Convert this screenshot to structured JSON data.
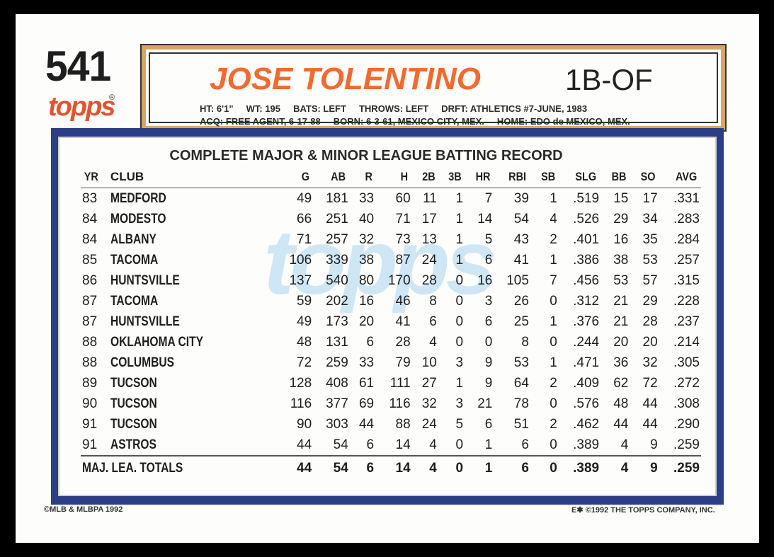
{
  "card_number": "541",
  "brand": "topps",
  "player": {
    "name": "JOSE TOLENTINO",
    "position": "1B-OF",
    "bio_line1": "HT: 6'1\"     WT: 195     BATS: LEFT     THROWS: LEFT     DRFT: ATHLETICS #7-JUNE, 1983",
    "bio_line2": "ACQ: FREE AGENT, 6-17-88     BORN: 6-3-61, MEXICO CITY, MEX.     HOME: EDO de MEXICO, MEX."
  },
  "stats": {
    "title": "COMPLETE MAJOR & MINOR LEAGUE BATTING RECORD",
    "columns": [
      "YR",
      "CLUB",
      "G",
      "AB",
      "R",
      "H",
      "2B",
      "3B",
      "HR",
      "RBI",
      "SB",
      "SLG",
      "BB",
      "SO",
      "AVG"
    ],
    "rows": [
      [
        "83",
        "MEDFORD",
        "49",
        "181",
        "33",
        "60",
        "11",
        "1",
        "7",
        "39",
        "1",
        ".519",
        "15",
        "17",
        ".331"
      ],
      [
        "84",
        "MODESTO",
        "66",
        "251",
        "40",
        "71",
        "17",
        "1",
        "14",
        "54",
        "4",
        ".526",
        "29",
        "34",
        ".283"
      ],
      [
        "84",
        "ALBANY",
        "71",
        "257",
        "32",
        "73",
        "13",
        "1",
        "5",
        "43",
        "2",
        ".401",
        "16",
        "35",
        ".284"
      ],
      [
        "85",
        "TACOMA",
        "106",
        "339",
        "38",
        "87",
        "24",
        "1",
        "6",
        "41",
        "1",
        ".386",
        "38",
        "53",
        ".257"
      ],
      [
        "86",
        "HUNTSVILLE",
        "137",
        "540",
        "80",
        "170",
        "28",
        "0",
        "16",
        "105",
        "7",
        ".456",
        "53",
        "57",
        ".315"
      ],
      [
        "87",
        "TACOMA",
        "59",
        "202",
        "16",
        "46",
        "8",
        "0",
        "3",
        "26",
        "0",
        ".312",
        "21",
        "29",
        ".228"
      ],
      [
        "87",
        "HUNTSVILLE",
        "49",
        "173",
        "20",
        "41",
        "6",
        "0",
        "6",
        "25",
        "1",
        ".376",
        "21",
        "28",
        ".237"
      ],
      [
        "88",
        "OKLAHOMA CITY",
        "48",
        "131",
        "6",
        "28",
        "4",
        "0",
        "0",
        "8",
        "0",
        ".244",
        "20",
        "20",
        ".214"
      ],
      [
        "88",
        "COLUMBUS",
        "72",
        "259",
        "33",
        "79",
        "10",
        "3",
        "9",
        "53",
        "1",
        ".471",
        "36",
        "32",
        ".305"
      ],
      [
        "89",
        "TUCSON",
        "128",
        "408",
        "61",
        "111",
        "27",
        "1",
        "9",
        "64",
        "2",
        ".409",
        "62",
        "72",
        ".272"
      ],
      [
        "90",
        "TUCSON",
        "116",
        "377",
        "69",
        "116",
        "32",
        "3",
        "21",
        "78",
        "0",
        ".576",
        "48",
        "44",
        ".308"
      ],
      [
        "91",
        "TUCSON",
        "90",
        "303",
        "44",
        "88",
        "24",
        "5",
        "6",
        "51",
        "2",
        ".462",
        "44",
        "44",
        ".290"
      ],
      [
        "91",
        "ASTROS",
        "44",
        "54",
        "6",
        "14",
        "4",
        "0",
        "1",
        "6",
        "0",
        ".389",
        "4",
        "9",
        ".259"
      ]
    ],
    "totals": [
      "MAJ. LEA. TOTALS",
      "44",
      "54",
      "6",
      "14",
      "4",
      "0",
      "1",
      "6",
      "0",
      ".389",
      "4",
      "9",
      ".259"
    ]
  },
  "footer": {
    "left": "©MLB & MLBPA 1992",
    "right": "E✱ ©1992 THE TOPPS COMPANY, INC."
  },
  "colors": {
    "orange": "#f26a2e",
    "navy": "#2c3e84",
    "tan": "#d9a566"
  }
}
